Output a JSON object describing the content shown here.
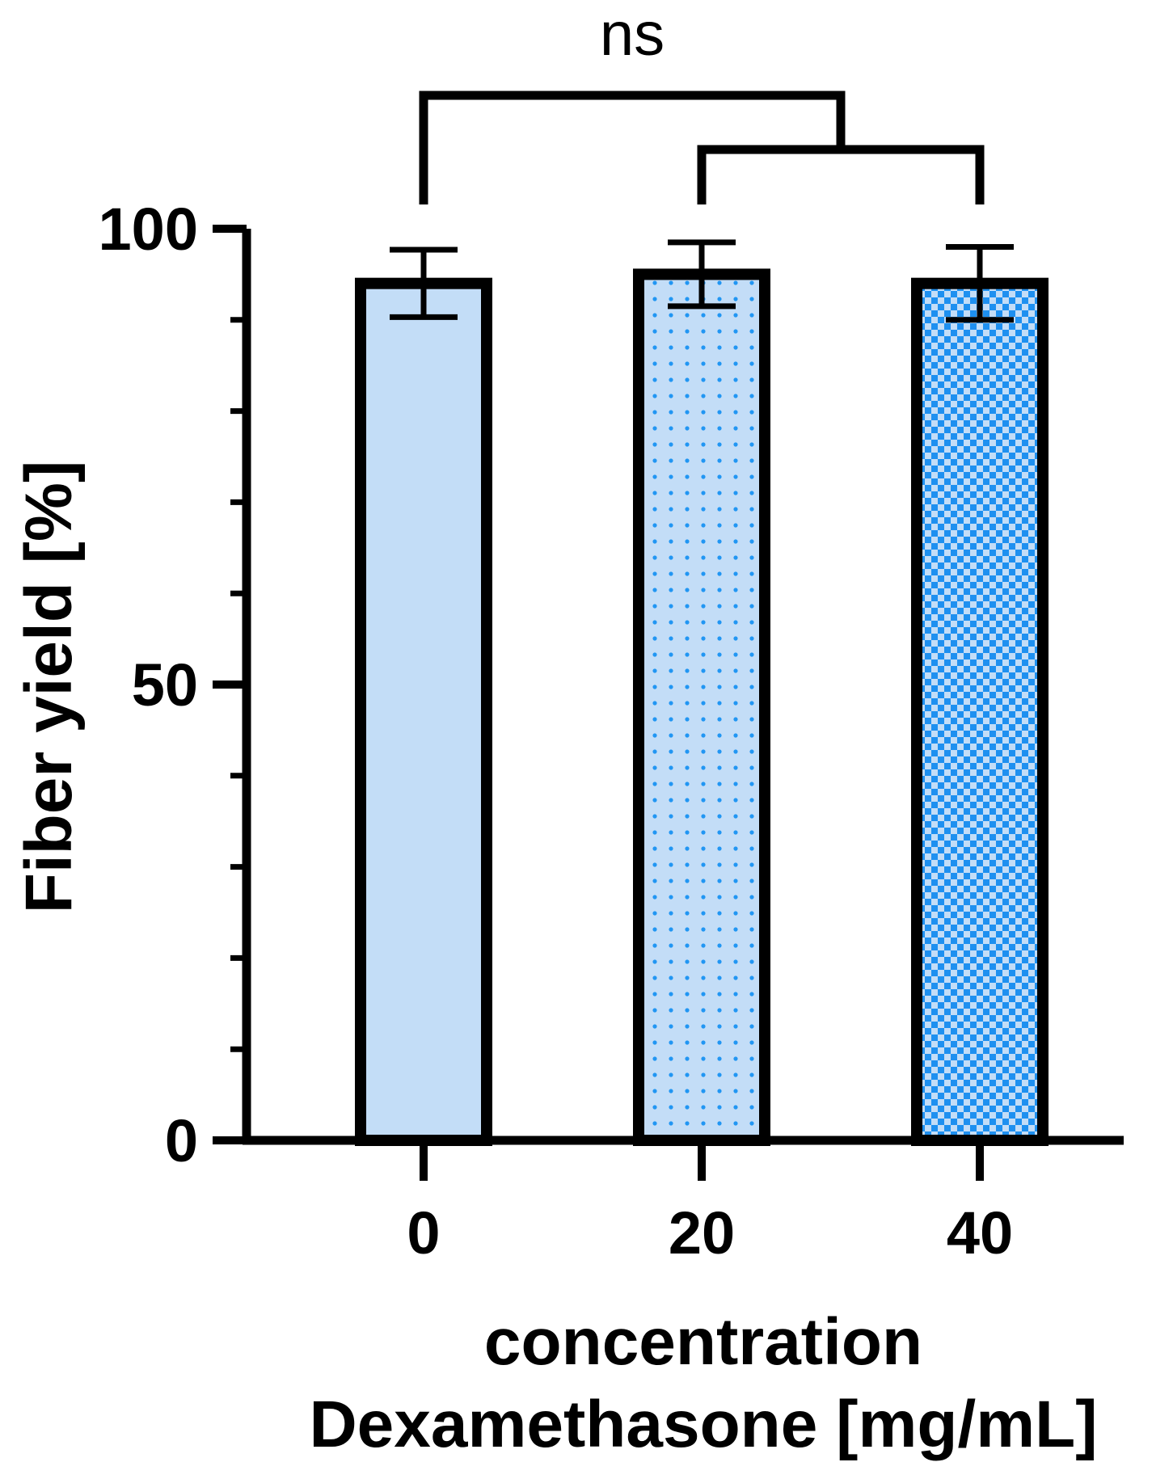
{
  "chart_data": {
    "type": "bar",
    "categories": [
      "0",
      "20",
      "40"
    ],
    "values": [
      94,
      95,
      94
    ],
    "errors": [
      3.7,
      3.5,
      4.0
    ],
    "xlabel_line1": "concentration",
    "xlabel_line2": "Dexamethasone [mg/mL]",
    "ylabel": "Fiber yield [%]",
    "ylim": [
      0,
      100
    ],
    "yticks_major": [
      0,
      50,
      100
    ],
    "yticks_labels": [
      "0",
      "50",
      "100"
    ],
    "yticks_minor_step": 10,
    "fills": [
      "#c3ddf7",
      "dots",
      "checker"
    ],
    "pattern_colors": {
      "light": "#c3ddf7",
      "accent": "#2196f3",
      "outline": "#000000"
    },
    "annotation": {
      "text": "ns",
      "comparison": "0 vs (20, 40)"
    }
  }
}
